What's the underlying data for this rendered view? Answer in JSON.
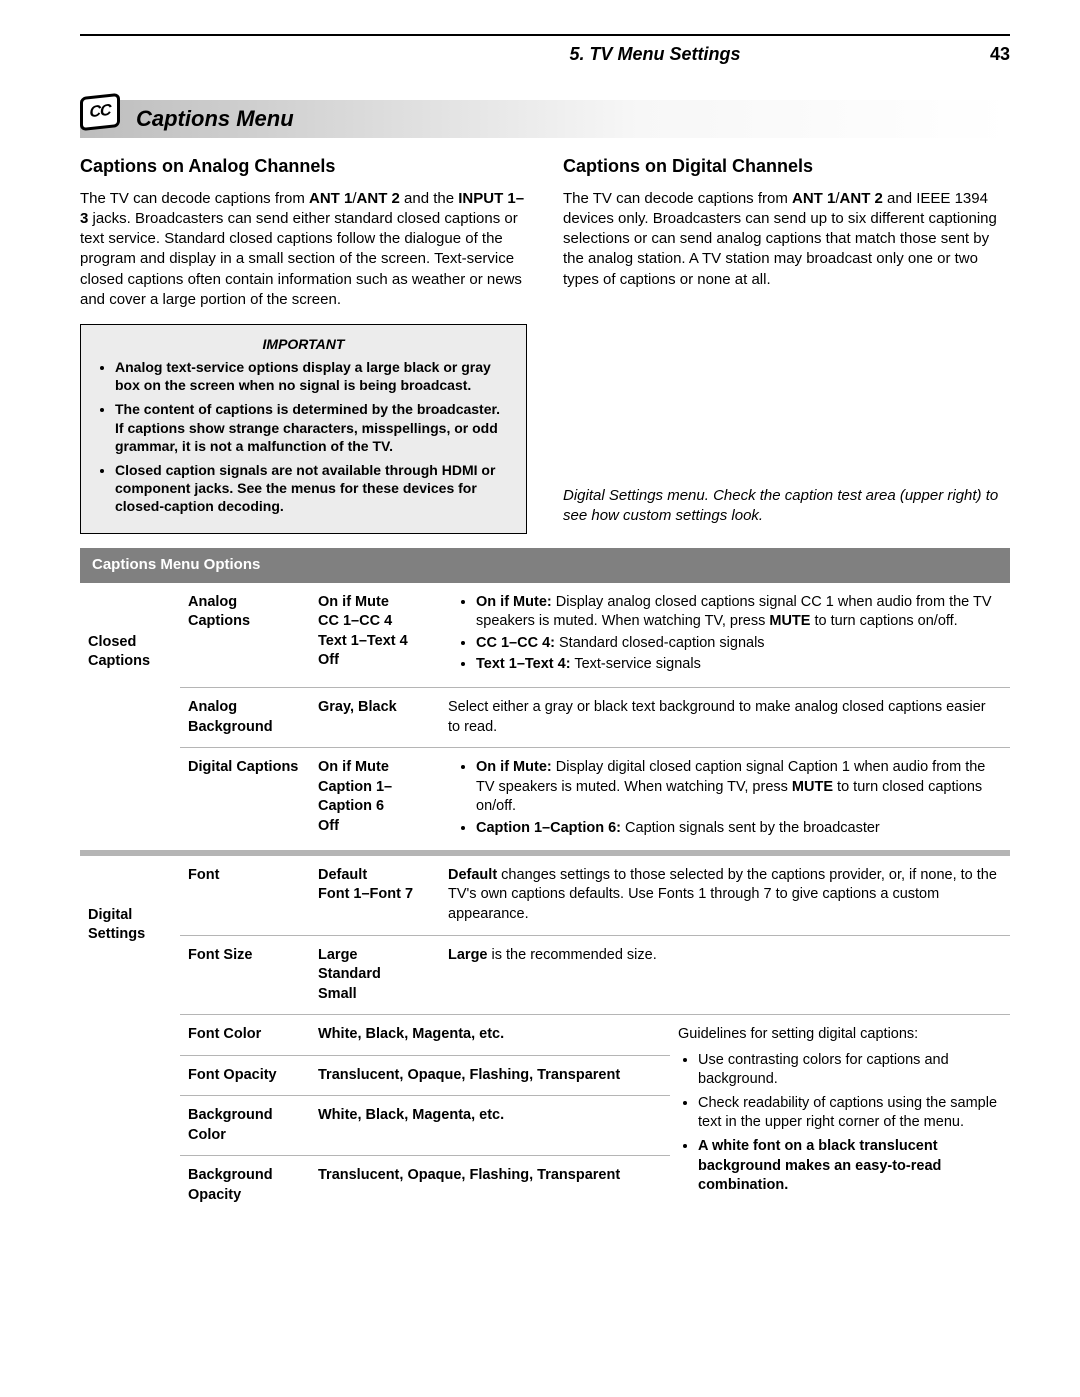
{
  "header": {
    "chapter": "5.  TV Menu Settings",
    "page": "43"
  },
  "menu": {
    "icon_text": "CC",
    "title": "Captions Menu"
  },
  "analog": {
    "heading": "Captions on Analog Channels",
    "body_html": "The TV can decode captions from <b>ANT 1</b>/<b>ANT 2</b> and the <b>INPUT 1–3</b> jacks.  Broadcasters can send either standard closed captions or text service.  Standard closed captions follow the dialogue of the program and display in a small section of the screen.  Text-service closed captions often contain information such as weather or news and cover a large portion of the screen."
  },
  "digital": {
    "heading": "Captions on Digital Channels",
    "body_html": "The TV can decode captions from <b>ANT 1</b>/<b>ANT 2</b> and IEEE 1394 devices only.  Broadcasters can send up to six different captioning selections or can send analog captions that match those sent by the analog station.  A TV station may broadcast only one or two types of captions or none at all.",
    "note": "Digital Settings menu.  Check the caption test area (upper right) to see how custom settings look."
  },
  "important": {
    "title": "IMPORTANT",
    "items": [
      "Analog text-service options display a large black or gray box on the screen when no signal is being broadcast.",
      "The content of captions is determined by the broadcaster.  If captions show strange characters, misspellings, or odd grammar, it is not a malfunction of the TV.",
      "Closed caption signals are not available through HDMI or component jacks.  See the menus for these devices for closed-caption decoding."
    ]
  },
  "options": {
    "header": "Captions Menu Options",
    "closed_captions": {
      "category": "Closed Captions",
      "rows": [
        {
          "option": "Analog Captions",
          "values_html": "On if Mute<br>CC 1–CC 4<br>Text 1–Text 4<br>Off",
          "desc_html": "<ul><li><b>On if Mute:</b>  Display analog closed captions signal CC 1 when audio from the TV speakers is muted.  When watching TV, press <span class=\"smallcaps\">MUTE</span> to turn captions on/off.</li><li><b>CC 1–CC 4:</b>  Standard closed-caption signals</li><li><b>Text 1–Text 4:</b>  Text-service signals</li></ul>"
        },
        {
          "option": "Analog Background",
          "values_html": "Gray, Black",
          "desc_html": "Select either a gray or black text background to make analog closed captions easier to read."
        },
        {
          "option": "Digital Captions",
          "values_html": "On if Mute<br>Caption 1–Caption 6<br>Off",
          "desc_html": "<ul><li><b>On if Mute:</b>  Display digital closed caption signal Caption 1 when audio from the TV speakers is muted.  When watching TV, press <span class=\"smallcaps\">MUTE</span> to turn closed captions on/off.</li><li><b>Caption 1–Caption 6:</b>  Caption signals sent by the broadcaster</li></ul>"
        }
      ]
    },
    "digital_settings": {
      "category": "Digital Settings",
      "rows": [
        {
          "option": "Font",
          "values_html": "Default<br>Font 1–Font 7",
          "desc_html": "<b>Default</b> changes settings to those selected by the captions provider, or, if none, to the TV's own captions defaults.  Use Fonts 1 through 7 to give captions a custom appearance."
        },
        {
          "option": "Font Size",
          "values_html": "Large<br>Standard<br>Small",
          "desc_html": "<b>Large</b> is the recommended size."
        }
      ],
      "merged_rows": [
        {
          "option": "Font Color",
          "values_html": "White, Black, Magenta, etc."
        },
        {
          "option": "Font Opacity",
          "values_html": "Translucent, Opaque, Flashing, Transparent"
        },
        {
          "option": "Background Color",
          "values_html": "White, Black, Magenta, etc."
        },
        {
          "option": "Background Opacity",
          "values_html": "Translucent, Opaque, Flashing, Transparent"
        }
      ],
      "guidelines_html": "Guidelines for setting digital captions:<ul><li>Use contrasting colors for captions and background.</li><li>Check readability of captions using the sample text in the upper right corner of the menu.</li><li><b>A white font on a black translucent background makes an easy-to-read combination.</b></li></ul>"
    }
  }
}
